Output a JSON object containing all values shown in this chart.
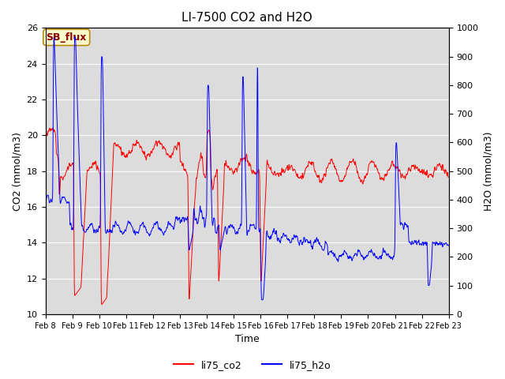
{
  "title": "LI-7500 CO2 and H2O",
  "xlabel": "Time",
  "ylabel_left": "CO2 (mmol/m3)",
  "ylabel_right": "H2O (mmol/m3)",
  "ylim_left": [
    10,
    26
  ],
  "ylim_right": [
    0,
    1000
  ],
  "yticks_left": [
    10,
    12,
    14,
    16,
    18,
    20,
    22,
    24,
    26
  ],
  "yticks_right": [
    0,
    100,
    200,
    300,
    400,
    500,
    600,
    700,
    800,
    900,
    1000
  ],
  "legend_labels": [
    "li75_co2",
    "li75_h2o"
  ],
  "legend_colors": [
    "red",
    "blue"
  ],
  "annotation_text": "SB_flux",
  "fig_bg": "#ffffff",
  "plot_bg": "#dcdcdc",
  "grid_color": "#ffffff",
  "title_fontsize": 11,
  "label_fontsize": 9,
  "tick_fontsize": 8,
  "xticklabels": [
    "Feb 8",
    "Feb 9",
    "Feb 10",
    "Feb 11",
    "Feb 12",
    "Feb 13",
    "Feb 14",
    "Feb 15",
    "Feb 16",
    "Feb 17",
    "Feb 18",
    "Feb 19",
    "Feb 20",
    "Feb 21",
    "Feb 22",
    "Feb 23"
  ],
  "seed": 42
}
